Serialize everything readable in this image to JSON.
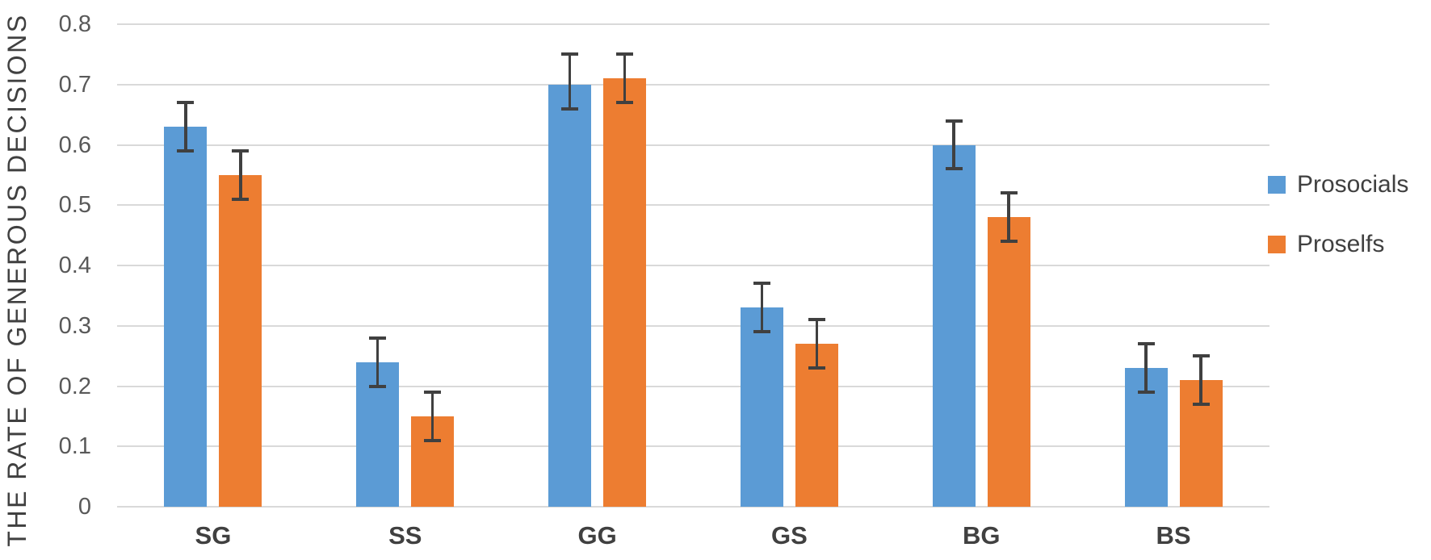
{
  "chart_data": {
    "type": "bar",
    "title": "",
    "xlabel": "",
    "ylabel": "THE RATE OF GENEROUS DECISIONS",
    "categories": [
      "SG",
      "SS",
      "GG",
      "GS",
      "BG",
      "BS"
    ],
    "series": [
      {
        "name": "Prosocials",
        "color": "#5B9BD5",
        "values": [
          0.63,
          0.24,
          0.7,
          0.33,
          0.6,
          0.23
        ],
        "error_low": [
          0.59,
          0.2,
          0.66,
          0.29,
          0.56,
          0.19
        ],
        "error_high": [
          0.67,
          0.28,
          0.75,
          0.37,
          0.64,
          0.27
        ]
      },
      {
        "name": "Proselfs",
        "color": "#ED7D31",
        "values": [
          0.55,
          0.15,
          0.71,
          0.27,
          0.48,
          0.21
        ],
        "error_low": [
          0.51,
          0.11,
          0.67,
          0.23,
          0.44,
          0.17
        ],
        "error_high": [
          0.59,
          0.19,
          0.75,
          0.31,
          0.52,
          0.25
        ]
      }
    ],
    "ylim": [
      0,
      0.8
    ],
    "ytick_step": 0.1,
    "ytick_labels": [
      "0",
      "0.1",
      "0.2",
      "0.3",
      "0.4",
      "0.5",
      "0.6",
      "0.7",
      "0.8"
    ],
    "grid": true,
    "gridline_color": "#D9D9D9",
    "error_bar_color": "#404040",
    "legend_position": "right",
    "legend": [
      "Prosocials",
      "Proselfs"
    ]
  }
}
